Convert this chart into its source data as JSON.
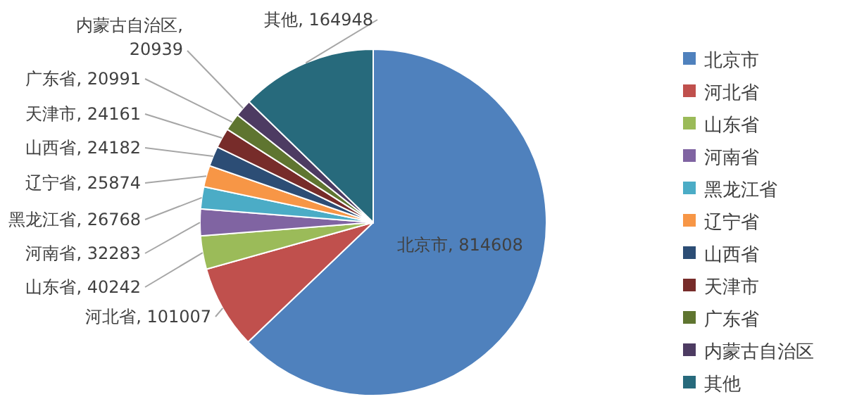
{
  "chart_data": {
    "type": "pie",
    "categories": [
      "北京市",
      "河北省",
      "山东省",
      "河南省",
      "黑龙江省",
      "辽宁省",
      "山西省",
      "天津市",
      "广东省",
      "内蒙古自治区",
      "其他"
    ],
    "values": [
      814608,
      101007,
      40242,
      32283,
      26768,
      25874,
      24182,
      24161,
      20991,
      20939,
      164948
    ],
    "value_labels": [
      "北京市, 814608",
      "河北省, 101007",
      "山东省, 40242",
      "河南省, 32283",
      "黑龙江省, 26768",
      "辽宁省, 25874",
      "山西省, 24182",
      "天津市, 24161",
      "广东省, 20991",
      "内蒙古自治区, 20939",
      "其他, 164948"
    ],
    "colors": [
      "#4f81bd",
      "#c0504d",
      "#9bbb59",
      "#8064a2",
      "#4bacc6",
      "#f79646",
      "#2c4d75",
      "#772c2a",
      "#5f7530",
      "#4d3b62",
      "#276a7c"
    ],
    "legend": "right"
  }
}
